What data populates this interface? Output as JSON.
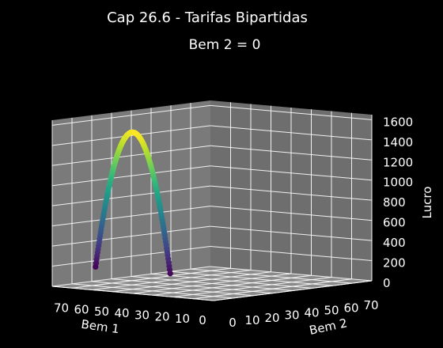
{
  "chart_data": {
    "type": "scatter",
    "projection": "3d",
    "suptitle": "Cap 26.6 - Tarifas Bipartidas",
    "title": "Bem 2 = 0",
    "xlabel": "Bem 1",
    "ylabel": "Bem 2",
    "zlabel": "Lucro",
    "x_ticks": [
      0,
      10,
      20,
      30,
      40,
      50,
      60,
      70
    ],
    "y_ticks": [
      0,
      10,
      20,
      30,
      40,
      50,
      60,
      70
    ],
    "z_ticks": [
      0,
      200,
      400,
      600,
      800,
      1000,
      1200,
      1400,
      1600
    ],
    "xlim": [
      0,
      80
    ],
    "ylim": [
      0,
      80
    ],
    "zlim": [
      0,
      1650
    ],
    "grid": true,
    "colormap": "viridis",
    "background": "#000000",
    "pane_color": "#808080",
    "series": [
      {
        "x_range": [
          0,
          80
        ],
        "y": 0,
        "z_formula": "z = 4*x*(80 - x) - 4800",
        "z_peak": 1600,
        "z_peak_at_x": 40,
        "z_min_shown": 200
      }
    ]
  }
}
